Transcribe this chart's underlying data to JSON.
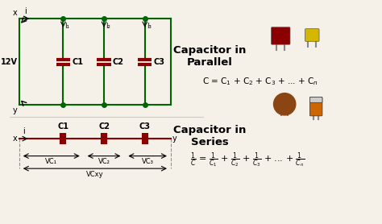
{
  "bg_color": "#f5f0e8",
  "circuit_color": "#006400",
  "cap_color": "#8B0000",
  "wire_color": "#8B0000",
  "text_color": "#000000",
  "title_parallel": "Capacitor in\nParallel",
  "title_series": "Capacitor in\nSeries",
  "formula_parallel": "C = C$_1$ + C$_2$ + C$_3$ + ... + C$_n$",
  "formula_series_lhs": "$\\frac{1}{C}$",
  "formula_series_rhs": "= $\\frac{1}{C_1}$ + $\\frac{1}{C_2}$ + $\\frac{1}{C_3}$ + ... + $\\frac{1}{C_n}$"
}
